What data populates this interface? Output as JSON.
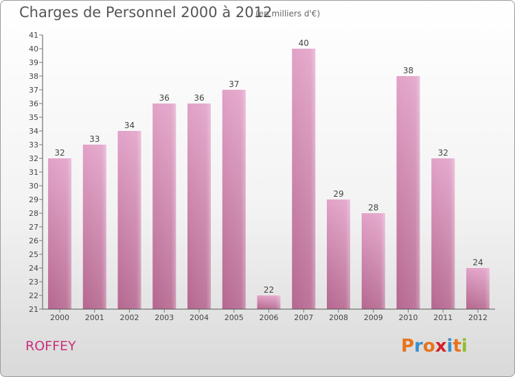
{
  "header": {
    "title": "Charges de Personnel 2000 à 2012",
    "unit": "(en milliers d'€)"
  },
  "footer": {
    "commune": "ROFFEY",
    "logo_text": "Proxiti",
    "logo_colors": [
      "#e8731d",
      "#3a8fcf",
      "#e8731d",
      "#d2232a",
      "#3a8fcf",
      "#e8731d",
      "#8dbf2f"
    ]
  },
  "colors": {
    "bar_top": "#e2a2c8",
    "bar_bottom": "#b5678f",
    "axis": "#555555",
    "grid_tick": "#777777",
    "commune": "#c9307c"
  },
  "chart_data": {
    "type": "bar",
    "title": "Charges de Personnel 2000 à 2012",
    "subtitle": "(en milliers d'€)",
    "xlabel": "",
    "ylabel": "",
    "categories": [
      "2000",
      "2001",
      "2002",
      "2003",
      "2004",
      "2005",
      "2006",
      "2007",
      "2008",
      "2009",
      "2010",
      "2011",
      "2012"
    ],
    "values": [
      32,
      33,
      34,
      36,
      36,
      37,
      22,
      40,
      29,
      28,
      38,
      32,
      24
    ],
    "ylim": [
      21,
      41
    ],
    "yticks": [
      21,
      22,
      23,
      24,
      25,
      26,
      27,
      28,
      29,
      30,
      31,
      32,
      33,
      34,
      35,
      36,
      37,
      38,
      39,
      40,
      41
    ],
    "grid": false,
    "legend": "none",
    "data_labels": true
  }
}
